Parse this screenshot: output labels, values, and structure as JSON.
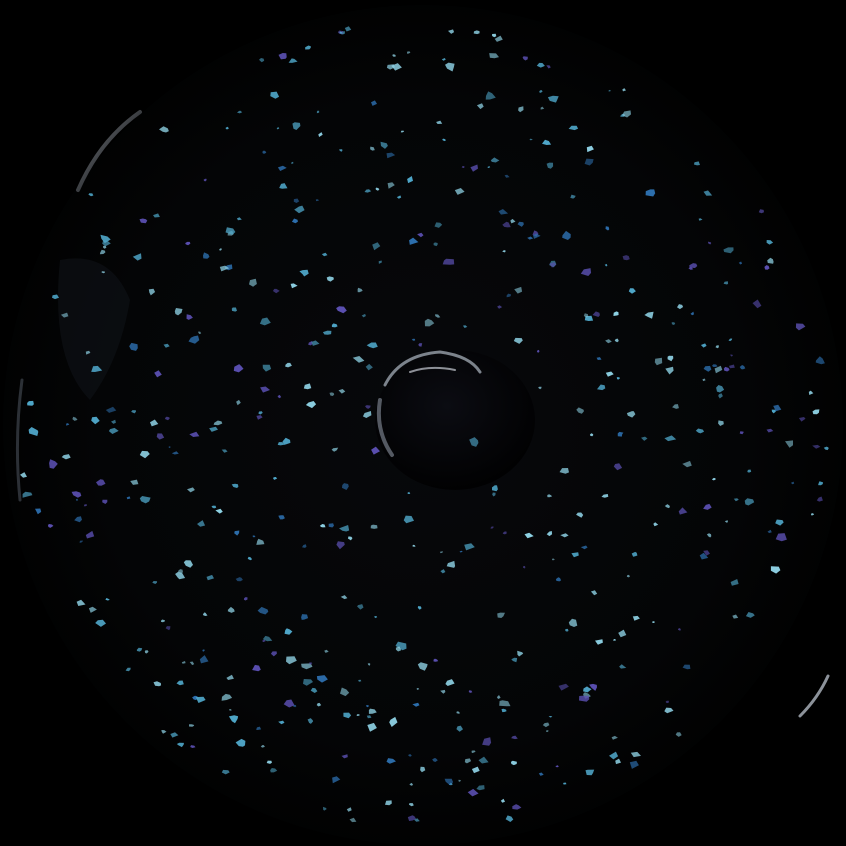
{
  "image": {
    "subject": "dark-bowl-with-speckles",
    "colors": {
      "background": "#000000",
      "bowl_body": "#050608",
      "rim_highlight": "#7a7f86",
      "center_well": "#020203",
      "center_highlight": "#9aa3ad",
      "speckle_light": "#8fd3e6",
      "speckle_mid": "#4fa7c9",
      "speckle_deep": "#2d6fae",
      "speckle_violet": "#5a4fb0"
    },
    "speckle_density": "high"
  }
}
